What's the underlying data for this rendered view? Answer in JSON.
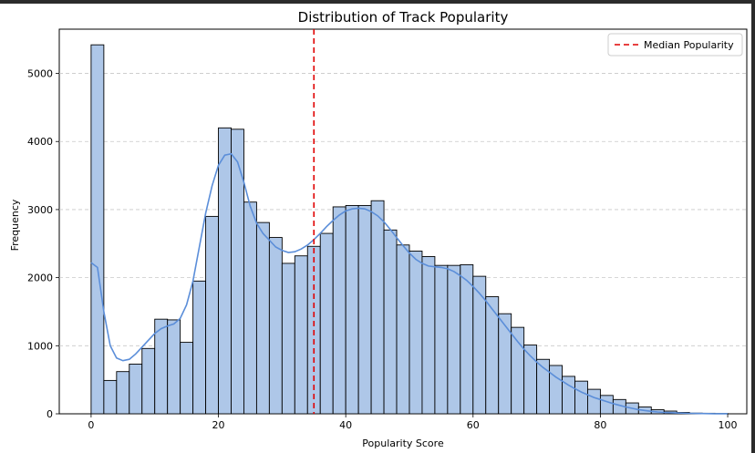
{
  "chart_data": {
    "type": "bar",
    "title": "Distribution of Track Popularity",
    "xlabel": "Popularity Score",
    "ylabel": "Frequency",
    "xlim": [
      -5,
      103
    ],
    "ylim": [
      0,
      5650
    ],
    "xticks": [
      0,
      20,
      40,
      60,
      80,
      100
    ],
    "yticks": [
      0,
      1000,
      2000,
      3000,
      4000,
      5000
    ],
    "grid": "y-dashed",
    "legend": {
      "placement": "top-right",
      "entries": [
        "Median Popularity"
      ]
    },
    "median": 35,
    "bin_width": 2,
    "bin_start": 0,
    "bar_color": "#aec7e8",
    "bar_edge": "#000000",
    "kde_color": "#5b8ed9",
    "median_color": "#e00000",
    "values": [
      5420,
      490,
      620,
      730,
      960,
      1390,
      1380,
      1050,
      1950,
      2900,
      4200,
      4180,
      3110,
      2810,
      2590,
      2210,
      2320,
      2460,
      2650,
      3040,
      3060,
      3060,
      3130,
      2700,
      2480,
      2390,
      2310,
      2180,
      2180,
      2190,
      2020,
      1720,
      1470,
      1270,
      1010,
      800,
      710,
      550,
      480,
      360,
      270,
      210,
      160,
      100,
      60,
      40,
      20,
      10,
      8,
      5
    ],
    "kde": [
      [
        0,
        2220
      ],
      [
        1,
        2150
      ],
      [
        2,
        1500
      ],
      [
        3,
        1000
      ],
      [
        4,
        820
      ],
      [
        5,
        780
      ],
      [
        6,
        800
      ],
      [
        7,
        880
      ],
      [
        8,
        980
      ],
      [
        9,
        1080
      ],
      [
        10,
        1180
      ],
      [
        11,
        1250
      ],
      [
        12,
        1290
      ],
      [
        13,
        1320
      ],
      [
        14,
        1400
      ],
      [
        15,
        1600
      ],
      [
        16,
        1950
      ],
      [
        17,
        2450
      ],
      [
        18,
        2950
      ],
      [
        19,
        3350
      ],
      [
        20,
        3650
      ],
      [
        21,
        3800
      ],
      [
        22,
        3820
      ],
      [
        23,
        3700
      ],
      [
        24,
        3400
      ],
      [
        25,
        3050
      ],
      [
        26,
        2800
      ],
      [
        27,
        2650
      ],
      [
        28,
        2550
      ],
      [
        29,
        2450
      ],
      [
        30,
        2400
      ],
      [
        31,
        2370
      ],
      [
        32,
        2380
      ],
      [
        33,
        2420
      ],
      [
        34,
        2480
      ],
      [
        35,
        2560
      ],
      [
        36,
        2650
      ],
      [
        37,
        2750
      ],
      [
        38,
        2840
      ],
      [
        39,
        2920
      ],
      [
        40,
        2980
      ],
      [
        41,
        3010
      ],
      [
        42,
        3020
      ],
      [
        43,
        3010
      ],
      [
        44,
        2970
      ],
      [
        45,
        2910
      ],
      [
        46,
        2820
      ],
      [
        47,
        2710
      ],
      [
        48,
        2590
      ],
      [
        49,
        2470
      ],
      [
        50,
        2360
      ],
      [
        51,
        2270
      ],
      [
        52,
        2210
      ],
      [
        53,
        2170
      ],
      [
        54,
        2160
      ],
      [
        55,
        2150
      ],
      [
        56,
        2130
      ],
      [
        57,
        2090
      ],
      [
        58,
        2030
      ],
      [
        59,
        1960
      ],
      [
        60,
        1870
      ],
      [
        61,
        1770
      ],
      [
        62,
        1660
      ],
      [
        63,
        1540
      ],
      [
        64,
        1420
      ],
      [
        65,
        1300
      ],
      [
        66,
        1180
      ],
      [
        67,
        1060
      ],
      [
        68,
        950
      ],
      [
        69,
        850
      ],
      [
        70,
        760
      ],
      [
        71,
        680
      ],
      [
        72,
        610
      ],
      [
        73,
        540
      ],
      [
        74,
        480
      ],
      [
        75,
        420
      ],
      [
        76,
        370
      ],
      [
        77,
        320
      ],
      [
        78,
        280
      ],
      [
        79,
        240
      ],
      [
        80,
        210
      ],
      [
        81,
        180
      ],
      [
        82,
        150
      ],
      [
        83,
        125
      ],
      [
        84,
        100
      ],
      [
        85,
        80
      ],
      [
        86,
        62
      ],
      [
        87,
        48
      ],
      [
        88,
        36
      ],
      [
        89,
        27
      ],
      [
        90,
        20
      ],
      [
        92,
        12
      ],
      [
        94,
        7
      ],
      [
        96,
        4
      ],
      [
        98,
        2
      ],
      [
        100,
        1
      ]
    ]
  }
}
